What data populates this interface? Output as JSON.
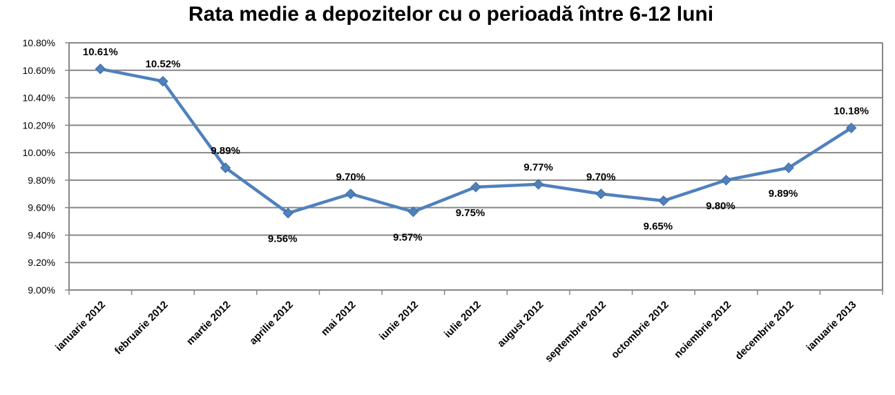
{
  "chart_data": {
    "type": "line",
    "title": "Rata medie a depozitelor cu o perioadă între 6-12 luni",
    "xlabel": "",
    "ylabel": "",
    "categories": [
      "ianuarie 2012",
      "februarie 2012",
      "martie 2012",
      "aprilie 2012",
      "mai 2012",
      "iunie 2012",
      "iulie 2012",
      "august 2012",
      "septembrie 2012",
      "octombrie 2012",
      "noiembrie 2012",
      "decembrie 2012",
      "ianuarie 2013"
    ],
    "series": [
      {
        "values": [
          10.61,
          10.52,
          9.89,
          9.56,
          9.7,
          9.57,
          9.75,
          9.77,
          9.7,
          9.65,
          9.8,
          9.89,
          10.18
        ],
        "data_labels": [
          "10.61%",
          "10.52%",
          "9.89%",
          "9.56%",
          "9.70%",
          "9.57%",
          "9.75%",
          "9.77%",
          "9.70%",
          "9.65%",
          "9.80%",
          "9.89%",
          "10.18%"
        ],
        "color": "#4f81bd"
      }
    ],
    "ylim": [
      9.0,
      10.8
    ],
    "yticks": [
      9.0,
      9.2,
      9.4,
      9.6,
      9.8,
      10.0,
      10.2,
      10.4,
      10.6,
      10.8
    ],
    "ytick_labels": [
      "9.00%",
      "9.20%",
      "9.40%",
      "9.60%",
      "9.80%",
      "10.00%",
      "10.20%",
      "10.40%",
      "10.60%",
      "10.80%"
    ],
    "grid": true,
    "legend": "none"
  }
}
